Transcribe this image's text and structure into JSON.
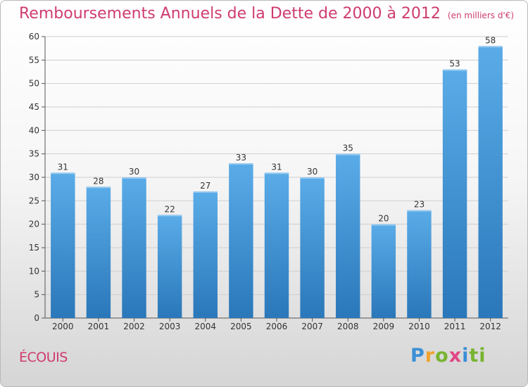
{
  "header": {
    "title": "Remboursements Annuels de la Dette de 2000 à 2012",
    "unit": "(en milliers d'€)"
  },
  "footer": {
    "commune": "ÉCOUIS",
    "logo_text": "Proxiti"
  },
  "colors": {
    "title": "#cf3b70",
    "bar_top": "#5aace8",
    "bar_bottom": "#2a77b9",
    "grid": "#cfcfcf"
  },
  "chart_data": {
    "type": "bar",
    "title": "Remboursements Annuels de la Dette de 2000 à 2012",
    "xlabel": "",
    "ylabel": "",
    "categories": [
      "2000",
      "2001",
      "2002",
      "2003",
      "2004",
      "2005",
      "2006",
      "2007",
      "2008",
      "2009",
      "2010",
      "2011",
      "2012"
    ],
    "values": [
      31,
      28,
      30,
      22,
      27,
      33,
      31,
      30,
      35,
      20,
      23,
      53,
      58
    ],
    "ylim": [
      0,
      60
    ],
    "yticks": [
      0,
      5,
      10,
      15,
      20,
      25,
      30,
      35,
      40,
      45,
      50,
      55,
      60
    ],
    "grid": true,
    "legend": "none"
  }
}
